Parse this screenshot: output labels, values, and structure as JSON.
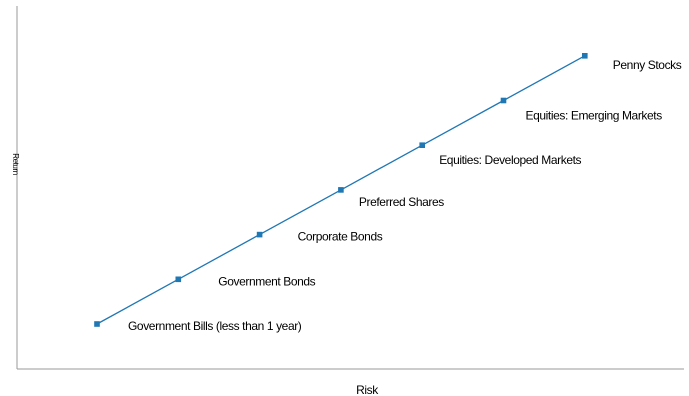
{
  "chart_data": {
    "type": "line",
    "title": "",
    "xlabel": "Risk",
    "ylabel": "Return",
    "grid": false,
    "legend": "none",
    "color": "#1f77b4",
    "x": [
      1,
      2,
      3,
      4,
      5,
      6,
      7
    ],
    "y": [
      1,
      2,
      3,
      4,
      5,
      6,
      7
    ],
    "point_labels": [
      "Government Bills (less than 1 year)",
      "Government Bonds",
      "Corporate Bonds",
      "Preferred Shares",
      "Equities: Developed Markets",
      "Equities: Emerging Markets",
      "Penny Stocks"
    ]
  }
}
